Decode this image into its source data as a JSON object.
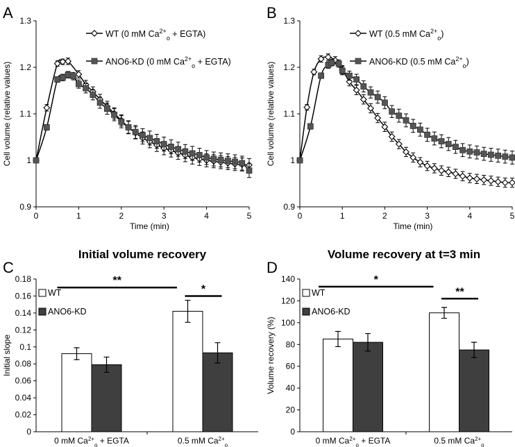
{
  "chart_data": [
    {
      "panel": "A",
      "type": "line",
      "xlabel": "Time (min)",
      "ylabel": "Cell volume (relative values)",
      "xlim": [
        0,
        5
      ],
      "ylim": [
        0.9,
        1.3
      ],
      "xticks": [
        "0",
        "1",
        "2",
        "3",
        "4",
        "5"
      ],
      "yticks": [
        "0.9",
        "1",
        "1.1",
        "1.2",
        "1.3"
      ],
      "legend_position": "top-right",
      "series": [
        {
          "name": "WT",
          "legend_html": "WT (0 mM Ca<tspan baseline-shift='super' font-size='9'>2+</tspan><tspan baseline-shift='sub' font-size='9'>o</tspan> + EGTA)",
          "legend_plain": "WT (0 mM Ca2+o + EGTA)",
          "marker": "diamond-open",
          "x": [
            0,
            0.25,
            0.5,
            0.625,
            0.75,
            1.0,
            1.167,
            1.333,
            1.5,
            1.667,
            1.833,
            2.0,
            2.167,
            2.333,
            2.5,
            2.667,
            2.833,
            3.0,
            3.167,
            3.333,
            3.5,
            3.667,
            3.833,
            4.0,
            4.167,
            4.333,
            4.5,
            4.667,
            4.833,
            5.0
          ],
          "y": [
            1.0,
            1.113,
            1.208,
            1.212,
            1.213,
            1.185,
            1.163,
            1.148,
            1.131,
            1.116,
            1.101,
            1.086,
            1.071,
            1.059,
            1.048,
            1.04,
            1.033,
            1.026,
            1.021,
            1.016,
            1.011,
            1.006,
            1.003,
            1.0,
            0.998,
            0.996,
            0.994,
            0.992,
            0.991,
            0.99
          ],
          "error": [
            0,
            0.007,
            0.006,
            0.006,
            0.007,
            0.008,
            0.009,
            0.01,
            0.011,
            0.011,
            0.012,
            0.012,
            0.013,
            0.013,
            0.013,
            0.013,
            0.014,
            0.014,
            0.014,
            0.014,
            0.014,
            0.014,
            0.014,
            0.014,
            0.014,
            0.014,
            0.014,
            0.014,
            0.014,
            0.014
          ]
        },
        {
          "name": "ANO6-KD",
          "legend_html": "ANO6-KD (0 mM Ca<tspan baseline-shift='super' font-size='9'>2+</tspan><tspan baseline-shift='sub' font-size='9'>o</tspan> + EGTA)",
          "legend_plain": "ANO6-KD (0 mM Ca2+o + EGTA)",
          "marker": "square-filled",
          "x": [
            0,
            0.25,
            0.5,
            0.625,
            0.75,
            0.875,
            1.0,
            1.167,
            1.333,
            1.5,
            1.667,
            1.833,
            2.0,
            2.167,
            2.333,
            2.5,
            2.667,
            2.833,
            3.0,
            3.167,
            3.333,
            3.5,
            3.667,
            3.833,
            4.0,
            4.167,
            4.333,
            4.5,
            4.667,
            4.833,
            5.0
          ],
          "y": [
            1.0,
            1.071,
            1.174,
            1.178,
            1.184,
            1.181,
            1.164,
            1.155,
            1.141,
            1.124,
            1.111,
            1.098,
            1.083,
            1.071,
            1.061,
            1.054,
            1.048,
            1.041,
            1.035,
            1.029,
            1.024,
            1.019,
            1.015,
            1.011,
            1.006,
            1.003,
            1.001,
            0.999,
            0.997,
            0.994,
            0.978
          ],
          "error": [
            0,
            0.006,
            0.006,
            0.007,
            0.007,
            0.008,
            0.009,
            0.01,
            0.011,
            0.012,
            0.012,
            0.013,
            0.013,
            0.014,
            0.014,
            0.014,
            0.015,
            0.015,
            0.015,
            0.015,
            0.015,
            0.015,
            0.015,
            0.015,
            0.015,
            0.015,
            0.015,
            0.015,
            0.015,
            0.015,
            0.015
          ]
        }
      ]
    },
    {
      "panel": "B",
      "type": "line",
      "xlabel": "Time (min)",
      "ylabel": "Cell volume (relative values)",
      "xlim": [
        0,
        5
      ],
      "ylim": [
        0.9,
        1.3
      ],
      "xticks": [
        "0",
        "1",
        "2",
        "3",
        "4",
        "5"
      ],
      "yticks": [
        "0.9",
        "1",
        "1.1",
        "1.2",
        "1.3"
      ],
      "legend_position": "top-right",
      "series": [
        {
          "name": "WT",
          "legend_html": "WT (0.5 mM Ca<tspan baseline-shift='super' font-size='9'>2+</tspan><tspan baseline-shift='sub' font-size='9'>o</tspan>)",
          "legend_plain": "WT (0.5 mM Ca2+o)",
          "marker": "diamond-open",
          "x": [
            0,
            0.167,
            0.333,
            0.5,
            0.667,
            0.833,
            1.0,
            1.167,
            1.333,
            1.5,
            1.667,
            1.833,
            2.0,
            2.167,
            2.333,
            2.5,
            2.667,
            2.833,
            3.0,
            3.167,
            3.333,
            3.5,
            3.667,
            3.833,
            4.0,
            4.167,
            4.333,
            4.5,
            4.667,
            4.833,
            5.0
          ],
          "y": [
            1.0,
            1.114,
            1.19,
            1.218,
            1.222,
            1.215,
            1.195,
            1.169,
            1.151,
            1.131,
            1.112,
            1.091,
            1.072,
            1.051,
            1.035,
            1.018,
            1.006,
            0.996,
            0.988,
            0.983,
            0.978,
            0.975,
            0.971,
            0.966,
            0.962,
            0.96,
            0.958,
            0.956,
            0.954,
            0.952,
            0.952
          ],
          "error": [
            0,
            0.006,
            0.006,
            0.007,
            0.007,
            0.008,
            0.009,
            0.009,
            0.01,
            0.01,
            0.01,
            0.01,
            0.01,
            0.01,
            0.01,
            0.01,
            0.01,
            0.01,
            0.01,
            0.01,
            0.01,
            0.01,
            0.01,
            0.01,
            0.01,
            0.01,
            0.01,
            0.01,
            0.01,
            0.01,
            0.01
          ]
        },
        {
          "name": "ANO6-KD",
          "legend_html": "ANO6-KD (0.5 mM Ca<tspan baseline-shift='super' font-size='9'>2+</tspan><tspan baseline-shift='sub' font-size='9'>o</tspan>)",
          "legend_plain": "ANO6-KD (0.5 mM Ca2+o)",
          "marker": "square-filled",
          "x": [
            0,
            0.25,
            0.5,
            0.667,
            0.75,
            0.917,
            1.0,
            1.167,
            1.333,
            1.5,
            1.667,
            1.833,
            2.0,
            2.167,
            2.333,
            2.5,
            2.667,
            2.833,
            3.0,
            3.167,
            3.333,
            3.5,
            3.667,
            3.833,
            4.0,
            4.167,
            4.333,
            4.5,
            4.667,
            4.833,
            5.0
          ],
          "y": [
            1.0,
            1.073,
            1.182,
            1.205,
            1.21,
            1.208,
            1.193,
            1.182,
            1.174,
            1.159,
            1.146,
            1.136,
            1.124,
            1.105,
            1.096,
            1.086,
            1.074,
            1.066,
            1.055,
            1.047,
            1.041,
            1.035,
            1.029,
            1.022,
            1.019,
            1.017,
            1.014,
            1.012,
            1.01,
            1.008,
            1.006
          ],
          "error": [
            0,
            0.006,
            0.006,
            0.007,
            0.007,
            0.008,
            0.009,
            0.01,
            0.011,
            0.012,
            0.012,
            0.013,
            0.013,
            0.013,
            0.014,
            0.014,
            0.014,
            0.014,
            0.014,
            0.014,
            0.014,
            0.014,
            0.014,
            0.014,
            0.014,
            0.014,
            0.014,
            0.014,
            0.014,
            0.014,
            0.014
          ]
        }
      ]
    },
    {
      "panel": "C",
      "type": "bar",
      "title": "Initial volume recovery",
      "ylabel": "Initial slope",
      "ylim": [
        0,
        0.18
      ],
      "yticks": [
        "0",
        "0.02",
        "0.04",
        "0.06",
        "0.08",
        "0.1",
        "0.12",
        "0.14",
        "0.16",
        "0.18"
      ],
      "categories_html": [
        "0 mM Ca<tspan baseline-shift='super' font-size='8'>2+</tspan><tspan baseline-shift='sub' font-size='8'>o</tspan> + EGTA",
        "0.5 mM Ca<tspan baseline-shift='super' font-size='8'>2+</tspan><tspan baseline-shift='sub' font-size='8'>o</tspan>"
      ],
      "categories": [
        "0 mM Ca2+o + EGTA",
        "0.5 mM Ca2+o"
      ],
      "legend_position": "top-left",
      "series": [
        {
          "name": "WT",
          "values": [
            0.092,
            0.142
          ],
          "error": [
            0.007,
            0.013
          ],
          "fill": "#ffffff"
        },
        {
          "name": "ANO6-KD",
          "values": [
            0.079,
            0.093
          ],
          "error": [
            0.009,
            0.012
          ],
          "fill": "#3f3f3f"
        }
      ],
      "significance": [
        {
          "label": "**",
          "from": "0 mM Ca2+o + EGTA",
          "to": "0.5 mM Ca2+o",
          "level": 0.17
        },
        {
          "label": "*",
          "from": "WT 0.5 mM",
          "to": "ANO6-KD 0.5 mM",
          "level": 0.16
        }
      ]
    },
    {
      "panel": "D",
      "type": "bar",
      "title": "Volume recovery at t=3 min",
      "ylabel": "Volume recovery (%)",
      "ylim": [
        0,
        140
      ],
      "yticks": [
        "0",
        "20",
        "40",
        "60",
        "80",
        "100",
        "120",
        "140"
      ],
      "categories_html": [
        "0 mM Ca<tspan baseline-shift='super' font-size='8'>2+</tspan><tspan baseline-shift='sub' font-size='8'>o</tspan> + EGTA",
        "0.5 mM Ca<tspan baseline-shift='super' font-size='8'>2+</tspan><tspan baseline-shift='sub' font-size='8'>o</tspan>"
      ],
      "categories": [
        "0 mM Ca2+o + EGTA",
        "0.5 mM Ca2+o"
      ],
      "legend_position": "top-left",
      "series": [
        {
          "name": "WT",
          "values": [
            85,
            109
          ],
          "error": [
            7,
            5
          ],
          "fill": "#ffffff"
        },
        {
          "name": "ANO6-KD",
          "values": [
            82,
            75
          ],
          "error": [
            8,
            7
          ],
          "fill": "#3f3f3f"
        }
      ],
      "significance": [
        {
          "label": "*",
          "from": "0 mM Ca2+o + EGTA",
          "to": "0.5 mM Ca2+o",
          "level": 133
        },
        {
          "label": "**",
          "from": "WT 0.5 mM",
          "to": "ANO6-KD 0.5 mM",
          "level": 122
        }
      ]
    }
  ],
  "colors": {
    "line": "#000000",
    "marker_filled": "#555555",
    "bar_dark": "#3f3f3f"
  }
}
